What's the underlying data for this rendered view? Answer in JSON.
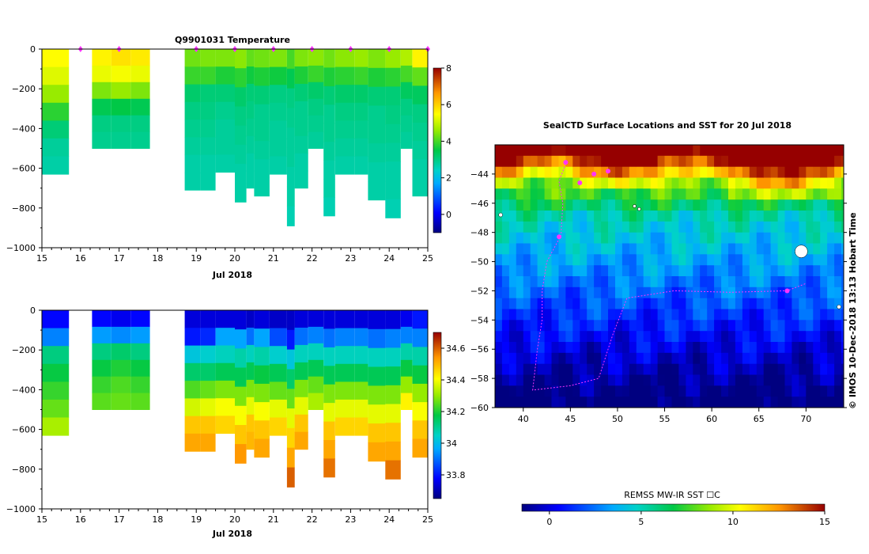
{
  "top_panel": {
    "title": "Q9901031  Temperature",
    "xlabel": "Jul 2018",
    "x_ticks": [
      "15",
      "16",
      "17",
      "18",
      "19",
      "20",
      "21",
      "22",
      "23",
      "24",
      "25"
    ],
    "y_ticks": [
      "0",
      "−200",
      "−400",
      "−600",
      "−800",
      "−1000"
    ],
    "colorbar_ticks": [
      "8",
      "6",
      "4",
      "2",
      "0"
    ]
  },
  "bottom_panel": {
    "xlabel": "Jul 2018",
    "x_ticks": [
      "15",
      "16",
      "17",
      "18",
      "19",
      "20",
      "21",
      "22",
      "23",
      "24",
      "25"
    ],
    "y_ticks": [
      "0",
      "−200",
      "−400",
      "−600",
      "−800",
      "−1000"
    ],
    "colorbar_ticks": [
      "34.6",
      "34.4",
      "34.2",
      "34",
      "33.8"
    ]
  },
  "map": {
    "title": "SealCTD Surface Locations and SST for 20 Jul 2018",
    "lat_ticks": [
      "−44",
      "−46",
      "−48",
      "−50",
      "−52",
      "−54",
      "−56",
      "−58",
      "−60"
    ],
    "lon_ticks": [
      "40",
      "45",
      "50",
      "55",
      "60",
      "65",
      "70"
    ],
    "side_label": "© IMOS 10-Dec-2018 13:13 Hobart Time",
    "colorbar_title": "REMSS MW-IR SST ☐C",
    "colorbar_ticks": [
      "0",
      "5",
      "10",
      "15"
    ],
    "colors": {
      "track": "#ff33ff",
      "land": "#ffffff"
    }
  },
  "chart_data": [
    {
      "type": "heatmap",
      "title": "Q9901031  Temperature",
      "xlabel": "Jul 2018",
      "ylabel": "",
      "xlim": [
        15,
        25
      ],
      "ylim": [
        -1000,
        0
      ],
      "colorbar": {
        "range": [
          -1,
          8
        ],
        "ticks": [
          0,
          2,
          4,
          6,
          8
        ]
      },
      "profiles": [
        {
          "day": 15.0,
          "day_end": 15.7,
          "max_depth": -630,
          "values": [
            5.5,
            5.2,
            4.6,
            3.8,
            3.1,
            2.8,
            2.7
          ]
        },
        {
          "day": 16.3,
          "day_end": 16.8,
          "max_depth": -500,
          "values": [
            5.6,
            5.3,
            4.4,
            3.4,
            3.0,
            2.9
          ]
        },
        {
          "day": 16.8,
          "day_end": 17.3,
          "max_depth": -500,
          "values": [
            5.8,
            5.4,
            4.6,
            3.5,
            3.0,
            2.9
          ]
        },
        {
          "day": 17.3,
          "day_end": 17.8,
          "max_depth": -500,
          "values": [
            5.7,
            5.3,
            4.4,
            3.4,
            3.0,
            2.9
          ]
        },
        {
          "day": 18.7,
          "day_end": 19.1,
          "max_depth": -710,
          "values": [
            4.3,
            3.9,
            3.2,
            3.0,
            2.9,
            2.8,
            2.7,
            2.7
          ]
        },
        {
          "day": 19.1,
          "day_end": 19.5,
          "max_depth": -710,
          "values": [
            4.4,
            3.9,
            3.1,
            3.0,
            2.9,
            2.8,
            2.7,
            2.7
          ]
        },
        {
          "day": 19.5,
          "day_end": 20.0,
          "max_depth": -620,
          "values": [
            4.4,
            3.7,
            3.1,
            2.9,
            2.8,
            2.8,
            2.7
          ]
        },
        {
          "day": 20.0,
          "day_end": 20.3,
          "max_depth": -770,
          "values": [
            4.5,
            3.8,
            3.2,
            3.0,
            2.9,
            2.8,
            2.7,
            2.7
          ]
        },
        {
          "day": 20.3,
          "day_end": 20.5,
          "max_depth": -700,
          "values": [
            4.2,
            3.6,
            3.1,
            3.0,
            2.9,
            2.8,
            2.7,
            2.7
          ]
        },
        {
          "day": 20.5,
          "day_end": 20.9,
          "max_depth": -740,
          "values": [
            4.3,
            3.7,
            3.1,
            2.9,
            2.9,
            2.8,
            2.7,
            2.7
          ]
        },
        {
          "day": 20.9,
          "day_end": 21.35,
          "max_depth": -630,
          "values": [
            4.4,
            3.6,
            3.0,
            2.9,
            2.8,
            2.8,
            2.7
          ]
        },
        {
          "day": 21.35,
          "day_end": 21.55,
          "max_depth": -890,
          "values": [
            4.0,
            3.4,
            3.0,
            2.9,
            2.8,
            2.8,
            2.7,
            2.7,
            2.6
          ]
        },
        {
          "day": 21.55,
          "day_end": 21.9,
          "max_depth": -700,
          "values": [
            4.4,
            3.7,
            3.1,
            2.9,
            2.9,
            2.8,
            2.7,
            2.7
          ]
        },
        {
          "day": 21.9,
          "day_end": 22.3,
          "max_depth": -500,
          "values": [
            4.5,
            3.9,
            3.2,
            3.0,
            2.9,
            2.8
          ]
        },
        {
          "day": 22.3,
          "day_end": 22.6,
          "max_depth": -840,
          "values": [
            4.3,
            3.7,
            3.1,
            2.9,
            2.9,
            2.8,
            2.7,
            2.7,
            2.6
          ]
        },
        {
          "day": 22.6,
          "day_end": 23.1,
          "max_depth": -630,
          "values": [
            4.5,
            3.8,
            3.2,
            3.0,
            2.9,
            2.8,
            2.7
          ]
        },
        {
          "day": 23.1,
          "day_end": 23.45,
          "max_depth": -630,
          "values": [
            4.6,
            3.9,
            3.2,
            3.0,
            2.9,
            2.8,
            2.7
          ]
        },
        {
          "day": 23.45,
          "day_end": 23.9,
          "max_depth": -760,
          "values": [
            4.4,
            3.7,
            3.1,
            2.9,
            2.9,
            2.8,
            2.7,
            2.7
          ]
        },
        {
          "day": 23.9,
          "day_end": 24.3,
          "max_depth": -850,
          "values": [
            4.6,
            3.8,
            3.1,
            3.0,
            2.9,
            2.8,
            2.7,
            2.7,
            2.6
          ]
        },
        {
          "day": 24.3,
          "day_end": 24.6,
          "max_depth": -500,
          "values": [
            4.8,
            4.0,
            3.3,
            3.0,
            2.9,
            2.8
          ]
        },
        {
          "day": 24.6,
          "day_end": 25.0,
          "max_depth": -740,
          "values": [
            5.6,
            4.2,
            3.3,
            3.0,
            2.9,
            2.8,
            2.7,
            2.7
          ]
        }
      ],
      "markers": [
        16.0,
        17.0,
        19.0,
        20.0,
        21.0,
        22.0,
        23.0,
        24.0,
        25.0
      ]
    },
    {
      "type": "heatmap",
      "title": "",
      "xlabel": "Jul 2018",
      "ylabel": "",
      "xlim": [
        15,
        25
      ],
      "ylim": [
        -1000,
        0
      ],
      "colorbar": {
        "range": [
          33.65,
          34.7
        ],
        "ticks": [
          33.8,
          34.0,
          34.2,
          34.4,
          34.6
        ]
      },
      "profiles": [
        {
          "day": 15.0,
          "day_end": 15.7,
          "max_depth": -630,
          "values": [
            33.78,
            33.92,
            34.12,
            34.18,
            34.22,
            34.26,
            34.32
          ]
        },
        {
          "day": 16.3,
          "day_end": 16.8,
          "max_depth": -500,
          "values": [
            33.78,
            33.95,
            34.12,
            34.18,
            34.22,
            34.25
          ]
        },
        {
          "day": 16.8,
          "day_end": 17.3,
          "max_depth": -500,
          "values": [
            33.76,
            33.93,
            34.14,
            34.2,
            34.24,
            34.26
          ]
        },
        {
          "day": 17.3,
          "day_end": 17.8,
          "max_depth": -500,
          "values": [
            33.78,
            33.95,
            34.12,
            34.18,
            34.22,
            34.25
          ]
        },
        {
          "day": 18.7,
          "day_end": 19.1,
          "max_depth": -710,
          "values": [
            33.74,
            33.8,
            34.02,
            34.14,
            34.24,
            34.36,
            34.48,
            34.52
          ]
        },
        {
          "day": 19.1,
          "day_end": 19.5,
          "max_depth": -710,
          "values": [
            33.74,
            33.82,
            34.04,
            34.14,
            34.26,
            34.38,
            34.48,
            34.52
          ]
        },
        {
          "day": 19.5,
          "day_end": 20.0,
          "max_depth": -620,
          "values": [
            33.74,
            33.96,
            34.06,
            34.16,
            34.28,
            34.4,
            34.46
          ]
        },
        {
          "day": 20.0,
          "day_end": 20.3,
          "max_depth": -770,
          "values": [
            33.74,
            33.96,
            34.08,
            34.16,
            34.28,
            34.4,
            34.48,
            34.54
          ]
        },
        {
          "day": 20.3,
          "day_end": 20.5,
          "max_depth": -700,
          "values": [
            33.72,
            33.9,
            34.06,
            34.16,
            34.28,
            34.38,
            34.48,
            34.5
          ]
        },
        {
          "day": 20.5,
          "day_end": 20.9,
          "max_depth": -740,
          "values": [
            33.74,
            33.96,
            34.08,
            34.18,
            34.28,
            34.4,
            34.48,
            34.52
          ]
        },
        {
          "day": 20.9,
          "day_end": 21.35,
          "max_depth": -630,
          "values": [
            33.72,
            33.86,
            34.04,
            34.16,
            34.26,
            34.38,
            34.46
          ]
        },
        {
          "day": 21.35,
          "day_end": 21.55,
          "max_depth": -890,
          "values": [
            33.72,
            33.8,
            34.02,
            34.14,
            34.26,
            34.38,
            34.46,
            34.52,
            34.6
          ]
        },
        {
          "day": 21.55,
          "day_end": 21.9,
          "max_depth": -700,
          "values": [
            33.74,
            33.9,
            34.06,
            34.16,
            34.28,
            34.38,
            34.48,
            34.52
          ]
        },
        {
          "day": 21.9,
          "day_end": 22.3,
          "max_depth": -500,
          "values": [
            33.74,
            33.92,
            34.06,
            34.16,
            34.26,
            34.32
          ]
        },
        {
          "day": 22.3,
          "day_end": 22.6,
          "max_depth": -840,
          "values": [
            33.74,
            33.9,
            34.06,
            34.16,
            34.28,
            34.38,
            34.48,
            34.52,
            34.58
          ]
        },
        {
          "day": 22.6,
          "day_end": 23.1,
          "max_depth": -630,
          "values": [
            33.74,
            33.92,
            34.06,
            34.16,
            34.28,
            34.38,
            34.46
          ]
        },
        {
          "day": 23.1,
          "day_end": 23.45,
          "max_depth": -630,
          "values": [
            33.74,
            33.92,
            34.06,
            34.16,
            34.28,
            34.38,
            34.46
          ]
        },
        {
          "day": 23.45,
          "day_end": 23.9,
          "max_depth": -760,
          "values": [
            33.74,
            33.9,
            34.06,
            34.16,
            34.28,
            34.38,
            34.48,
            34.52
          ]
        },
        {
          "day": 23.9,
          "day_end": 24.3,
          "max_depth": -850,
          "values": [
            33.74,
            33.92,
            34.06,
            34.16,
            34.28,
            34.38,
            34.48,
            34.52,
            34.58
          ]
        },
        {
          "day": 24.3,
          "day_end": 24.6,
          "max_depth": -500,
          "values": [
            33.76,
            33.92,
            34.08,
            34.18,
            34.3,
            34.42
          ]
        },
        {
          "day": 24.6,
          "day_end": 25.0,
          "max_depth": -740,
          "values": [
            33.8,
            33.92,
            34.08,
            34.18,
            34.3,
            34.4,
            34.48,
            34.52
          ]
        }
      ]
    },
    {
      "type": "heatmap",
      "title": "SealCTD Surface Locations and SST for 20 Jul 2018",
      "xlabel": "",
      "ylabel": "",
      "xlim": [
        37,
        74
      ],
      "ylim": [
        -60,
        -42
      ],
      "colorbar": {
        "title": "REMSS MW-IR SST ☐C",
        "range": [
          -1.5,
          15
        ],
        "ticks": [
          0,
          5,
          10,
          15
        ]
      },
      "surface_locations": [
        [
          46.0,
          -44.6
        ],
        [
          47.5,
          -44.0
        ],
        [
          49.0,
          -43.8
        ],
        [
          44.5,
          -43.2
        ],
        [
          43.8,
          -48.3
        ],
        [
          68.0,
          -52.0
        ]
      ],
      "track": [
        [
          44.5,
          -43.3
        ],
        [
          43.8,
          -44.5
        ],
        [
          44.2,
          -46.0
        ],
        [
          44.0,
          -48.2
        ],
        [
          42.5,
          -50.0
        ],
        [
          42.0,
          -52.0
        ],
        [
          42.0,
          -54.0
        ],
        [
          41.5,
          -56.0
        ],
        [
          41.0,
          -58.8
        ],
        [
          45.0,
          -58.5
        ],
        [
          48.0,
          -58.0
        ],
        [
          49.5,
          -55.0
        ],
        [
          51.0,
          -52.5
        ],
        [
          56.0,
          -52.0
        ],
        [
          62.0,
          -52.1
        ],
        [
          68.0,
          -52.0
        ],
        [
          70.0,
          -51.5
        ]
      ]
    }
  ]
}
